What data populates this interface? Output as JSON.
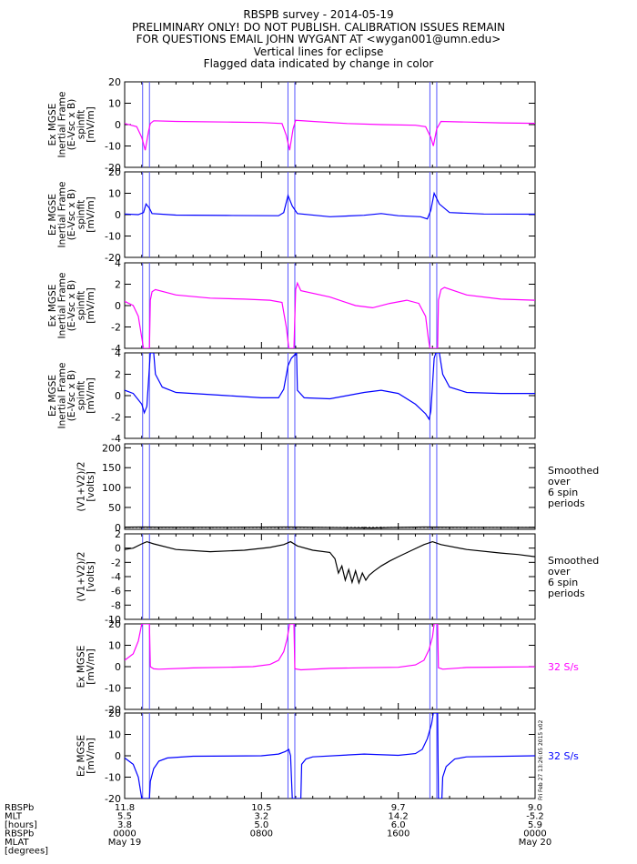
{
  "header": {
    "lines": [
      "RBSPB survey - 2014-05-19",
      "PRELIMINARY ONLY! DO NOT PUBLISH. CALIBRATION ISSUES REMAIN",
      "FOR QUESTIONS EMAIL JOHN WYGANT AT <wygan001@umn.edu>",
      "Vertical lines for eclipse",
      "Flagged data indicated by change in color"
    ]
  },
  "side_stamp": "Fri Feb 27 13:26:05 2015 v02",
  "colors": {
    "magenta": "#ff00ff",
    "blue": "#0000ff",
    "black": "#000000",
    "eclipse": "#5555ff"
  },
  "chart_data": {
    "type": "line",
    "x_unit": "hours since 2014-05-19 00:00",
    "xlim": [
      0,
      24
    ],
    "eclipse_lines_hours": [
      1.05,
      1.45,
      9.55,
      9.95,
      17.85,
      18.25
    ],
    "x_tick_hours": [
      0,
      8,
      16,
      24
    ],
    "x_minor_hours": [
      1,
      2,
      3,
      4,
      5,
      6,
      7,
      9,
      10,
      11,
      12,
      13,
      14,
      15,
      17,
      18,
      19,
      20,
      21,
      22,
      23
    ],
    "footer_labels": [
      "RBSPb",
      "MLT",
      "[hours]",
      "RBSPb",
      "MLAT",
      "[degrees]"
    ],
    "footer_columns": [
      {
        "x": 0,
        "values": [
          "11.8",
          "5.5",
          "3.8",
          "0000",
          "May 19"
        ]
      },
      {
        "x": 8,
        "values": [
          "10.5",
          "3.2",
          "5.0",
          "0800",
          ""
        ]
      },
      {
        "x": 16,
        "values": [
          "9.7",
          "14.2",
          "6.0",
          "1600",
          ""
        ]
      },
      {
        "x": 24,
        "values": [
          "9.0",
          "-5.2",
          "5.9",
          "0000",
          "May 20"
        ]
      }
    ],
    "panels": [
      {
        "ylabel": [
          "Ex MGSE",
          "Inertial Frame",
          "(E-Vsc x B)",
          "spinfit",
          "[mV/m]"
        ],
        "ylim": [
          -20,
          20
        ],
        "yticks": [
          20,
          10,
          0,
          -10,
          -20
        ],
        "color": "magenta",
        "zero_line": false,
        "right_note": [],
        "series": [
          [
            0,
            0.5
          ],
          [
            0.7,
            -1
          ],
          [
            1.0,
            -6
          ],
          [
            1.2,
            -12
          ],
          [
            1.4,
            -3
          ],
          [
            1.5,
            0.5
          ],
          [
            1.7,
            1.8
          ],
          [
            3,
            1.5
          ],
          [
            6,
            1.2
          ],
          [
            8,
            1.0
          ],
          [
            9.2,
            0.5
          ],
          [
            9.45,
            -5
          ],
          [
            9.65,
            -12
          ],
          [
            9.85,
            -2
          ],
          [
            10.0,
            2
          ],
          [
            11,
            1.5
          ],
          [
            13,
            0.5
          ],
          [
            15,
            0
          ],
          [
            17,
            -0.3
          ],
          [
            17.6,
            -1
          ],
          [
            17.9,
            -6
          ],
          [
            18.05,
            -10
          ],
          [
            18.25,
            -2
          ],
          [
            18.5,
            1.5
          ],
          [
            20,
            1.2
          ],
          [
            22,
            0.8
          ],
          [
            24,
            0.6
          ]
        ]
      },
      {
        "ylabel": [
          "Ez MGSE",
          "Inertial Frame",
          "(E-Vsc x B)",
          "spinfit",
          "[mV/m]"
        ],
        "ylim": [
          -20,
          20
        ],
        "yticks": [
          20,
          10,
          0,
          -10,
          -20
        ],
        "color": "blue",
        "zero_line": false,
        "right_note": [],
        "series": [
          [
            0,
            0.3
          ],
          [
            0.8,
            0
          ],
          [
            1.1,
            1
          ],
          [
            1.25,
            5
          ],
          [
            1.45,
            3
          ],
          [
            1.6,
            0.5
          ],
          [
            3,
            -0.2
          ],
          [
            6,
            -0.4
          ],
          [
            9.0,
            -0.5
          ],
          [
            9.3,
            1
          ],
          [
            9.55,
            9
          ],
          [
            9.8,
            4
          ],
          [
            10.1,
            0.5
          ],
          [
            12,
            -1
          ],
          [
            14,
            -0.3
          ],
          [
            15,
            0.5
          ],
          [
            16,
            -0.5
          ],
          [
            17.3,
            -1
          ],
          [
            17.7,
            -2
          ],
          [
            17.9,
            2
          ],
          [
            18.1,
            10
          ],
          [
            18.4,
            5
          ],
          [
            19,
            1
          ],
          [
            21,
            0.3
          ],
          [
            24,
            0.2
          ]
        ]
      },
      {
        "ylabel": [
          "Ex MGSE",
          "Inertial Frame",
          "(E-Vsc x B)",
          "spinfit",
          "[mV/m]"
        ],
        "ylim": [
          -4,
          4
        ],
        "yticks": [
          4,
          2,
          0,
          -2,
          -4
        ],
        "color": "magenta",
        "zero_line": false,
        "right_note": [],
        "series": [
          [
            0,
            0.4
          ],
          [
            0.5,
            0
          ],
          [
            0.8,
            -1
          ],
          [
            1.0,
            -3
          ],
          [
            1.1,
            -4.5
          ],
          [
            1.45,
            -4.5
          ],
          [
            1.5,
            0.5
          ],
          [
            1.6,
            1.3
          ],
          [
            1.8,
            1.5
          ],
          [
            3,
            1.0
          ],
          [
            5,
            0.7
          ],
          [
            7,
            0.6
          ],
          [
            8.5,
            0.5
          ],
          [
            9.2,
            0.3
          ],
          [
            9.45,
            -2
          ],
          [
            9.6,
            -4.5
          ],
          [
            9.9,
            -4.5
          ],
          [
            10.0,
            1.5
          ],
          [
            10.1,
            2.1
          ],
          [
            10.3,
            1.4
          ],
          [
            12,
            0.8
          ],
          [
            13.5,
            0
          ],
          [
            14.5,
            -0.2
          ],
          [
            15.5,
            0.2
          ],
          [
            16.5,
            0.5
          ],
          [
            17.2,
            0.2
          ],
          [
            17.6,
            -1
          ],
          [
            17.75,
            -3
          ],
          [
            17.85,
            -4.5
          ],
          [
            18.3,
            -4.5
          ],
          [
            18.35,
            0.5
          ],
          [
            18.5,
            1.5
          ],
          [
            18.7,
            1.7
          ],
          [
            20,
            1.0
          ],
          [
            22,
            0.6
          ],
          [
            24,
            0.5
          ]
        ]
      },
      {
        "ylabel": [
          "Ez MGSE",
          "Inertial Frame",
          "(E-Vsc x B)",
          "spinfit",
          "[mV/m]"
        ],
        "ylim": [
          -4,
          4
        ],
        "yticks": [
          4,
          2,
          0,
          -2,
          -4
        ],
        "color": "blue",
        "zero_line": false,
        "right_note": [],
        "series": [
          [
            0,
            0.5
          ],
          [
            0.5,
            0.2
          ],
          [
            1.0,
            -0.8
          ],
          [
            1.15,
            -1.6
          ],
          [
            1.3,
            -1.0
          ],
          [
            1.4,
            1.5
          ],
          [
            1.5,
            4.5
          ],
          [
            1.7,
            4.5
          ],
          [
            1.8,
            2.0
          ],
          [
            2.2,
            0.8
          ],
          [
            3,
            0.3
          ],
          [
            6,
            0
          ],
          [
            8,
            -0.2
          ],
          [
            9.0,
            -0.2
          ],
          [
            9.3,
            0.6
          ],
          [
            9.55,
            2.8
          ],
          [
            9.75,
            3.5
          ],
          [
            10.05,
            4.5
          ],
          [
            10.1,
            0.5
          ],
          [
            10.5,
            -0.2
          ],
          [
            12,
            -0.3
          ],
          [
            13,
            0
          ],
          [
            14,
            0.3
          ],
          [
            15,
            0.5
          ],
          [
            16,
            0.2
          ],
          [
            17,
            -0.8
          ],
          [
            17.6,
            -1.7
          ],
          [
            17.8,
            -2.2
          ],
          [
            17.9,
            -1.5
          ],
          [
            18.0,
            1.0
          ],
          [
            18.1,
            3.5
          ],
          [
            18.2,
            4.5
          ],
          [
            18.4,
            4.5
          ],
          [
            18.6,
            2
          ],
          [
            19,
            0.8
          ],
          [
            20,
            0.3
          ],
          [
            22,
            0.2
          ],
          [
            24,
            0.2
          ]
        ]
      },
      {
        "ylabel": [
          "(V1+V2)/2",
          "[volts]"
        ],
        "ylim": [
          -5,
          210
        ],
        "yticks": [
          200,
          150,
          100,
          50,
          0
        ],
        "color": "black",
        "zero_line": true,
        "right_note": [
          "Smoothed",
          "over",
          "6 spin",
          "periods"
        ],
        "series": [
          [
            0,
            0.5
          ],
          [
            1,
            0.8
          ],
          [
            2,
            0.5
          ],
          [
            6,
            0.3
          ],
          [
            9.5,
            0.8
          ],
          [
            10.5,
            0.4
          ],
          [
            13,
            -0.8
          ],
          [
            14.5,
            -1.5
          ],
          [
            15.5,
            -0.5
          ],
          [
            17.5,
            0.8
          ],
          [
            18.5,
            0.5
          ],
          [
            22,
            0
          ],
          [
            24,
            -0.5
          ]
        ]
      },
      {
        "ylabel": [
          "(V1+V2)/2",
          "[volts]"
        ],
        "ylim": [
          -10,
          2
        ],
        "yticks": [
          2,
          0,
          -2,
          -4,
          -6,
          -8,
          -10
        ],
        "color": "black",
        "zero_line": false,
        "right_note": [
          "Smoothed",
          "over",
          "6 spin",
          "periods"
        ],
        "series": [
          [
            0,
            -0.2
          ],
          [
            0.5,
            0
          ],
          [
            1.0,
            0.6
          ],
          [
            1.3,
            0.9
          ],
          [
            1.7,
            0.6
          ],
          [
            3,
            -0.2
          ],
          [
            5,
            -0.5
          ],
          [
            7,
            -0.3
          ],
          [
            8.5,
            0.1
          ],
          [
            9.3,
            0.5
          ],
          [
            9.7,
            0.9
          ],
          [
            10.1,
            0.3
          ],
          [
            11,
            -0.3
          ],
          [
            12,
            -0.6
          ],
          [
            12.3,
            -1.5
          ],
          [
            12.5,
            -3.5
          ],
          [
            12.7,
            -2.5
          ],
          [
            12.9,
            -4.5
          ],
          [
            13.1,
            -3.0
          ],
          [
            13.3,
            -4.8
          ],
          [
            13.5,
            -3.2
          ],
          [
            13.7,
            -4.9
          ],
          [
            13.9,
            -3.5
          ],
          [
            14.1,
            -4.5
          ],
          [
            14.3,
            -3.8
          ],
          [
            14.6,
            -3.2
          ],
          [
            15.0,
            -2.5
          ],
          [
            15.5,
            -1.8
          ],
          [
            16.0,
            -1.2
          ],
          [
            16.8,
            -0.3
          ],
          [
            17.5,
            0.5
          ],
          [
            18.0,
            0.9
          ],
          [
            18.5,
            0.5
          ],
          [
            20,
            -0.2
          ],
          [
            22,
            -0.7
          ],
          [
            23,
            -0.9
          ],
          [
            24,
            -1.2
          ]
        ]
      },
      {
        "ylabel": [
          "Ex MGSE",
          "[mV/m]"
        ],
        "ylim": [
          -20,
          20
        ],
        "yticks": [
          20,
          10,
          0,
          -10,
          -20
        ],
        "color": "magenta",
        "zero_line": false,
        "right_note": [
          "32 S/s"
        ],
        "series": [
          [
            0,
            3
          ],
          [
            0.5,
            6
          ],
          [
            0.8,
            12
          ],
          [
            1.0,
            21
          ],
          [
            1.45,
            21
          ],
          [
            1.5,
            0
          ],
          [
            1.7,
            -1
          ],
          [
            2,
            -1.2
          ],
          [
            4,
            -0.6
          ],
          [
            6,
            -0.3
          ],
          [
            7.5,
            0
          ],
          [
            8.5,
            1
          ],
          [
            9.0,
            3
          ],
          [
            9.3,
            7
          ],
          [
            9.5,
            13
          ],
          [
            9.65,
            21
          ],
          [
            9.9,
            21
          ],
          [
            9.95,
            -1
          ],
          [
            10.3,
            -1.5
          ],
          [
            12,
            -0.8
          ],
          [
            14,
            -0.5
          ],
          [
            16,
            -0.3
          ],
          [
            17.0,
            0.8
          ],
          [
            17.5,
            3
          ],
          [
            17.8,
            8
          ],
          [
            18.0,
            14
          ],
          [
            18.1,
            21
          ],
          [
            18.3,
            21
          ],
          [
            18.35,
            -0.5
          ],
          [
            18.6,
            -1.2
          ],
          [
            20,
            -0.4
          ],
          [
            22,
            -0.2
          ],
          [
            24,
            -0.1
          ]
        ]
      },
      {
        "ylabel": [
          "Ez MGSE",
          "[mV/m]"
        ],
        "ylim": [
          -20,
          20
        ],
        "yticks": [
          20,
          10,
          0,
          -10,
          -20
        ],
        "color": "blue",
        "zero_line": false,
        "right_note": [
          "32 S/s"
        ],
        "series": [
          [
            0,
            -1
          ],
          [
            0.5,
            -4
          ],
          [
            0.8,
            -10
          ],
          [
            1.0,
            -21
          ],
          [
            1.45,
            -21
          ],
          [
            1.5,
            -12
          ],
          [
            1.7,
            -6
          ],
          [
            2.0,
            -2.5
          ],
          [
            2.5,
            -1
          ],
          [
            4,
            -0.2
          ],
          [
            8,
            0
          ],
          [
            9.0,
            0.8
          ],
          [
            9.4,
            2
          ],
          [
            9.6,
            3
          ],
          [
            9.7,
            0
          ],
          [
            9.8,
            -21
          ],
          [
            10.3,
            -21
          ],
          [
            10.35,
            -4
          ],
          [
            10.6,
            -1.5
          ],
          [
            11,
            -0.5
          ],
          [
            14,
            0.8
          ],
          [
            16,
            0.2
          ],
          [
            17.0,
            1
          ],
          [
            17.4,
            3
          ],
          [
            17.7,
            8
          ],
          [
            17.95,
            15
          ],
          [
            18.05,
            21
          ],
          [
            18.3,
            21
          ],
          [
            18.35,
            -21
          ],
          [
            18.55,
            -21
          ],
          [
            18.6,
            -10
          ],
          [
            18.8,
            -5
          ],
          [
            19.3,
            -1.5
          ],
          [
            20,
            -0.5
          ],
          [
            24,
            0
          ]
        ]
      }
    ]
  }
}
